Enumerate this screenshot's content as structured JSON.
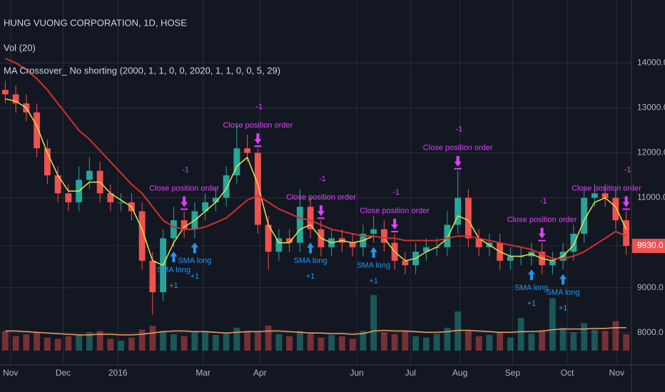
{
  "chart_data": {
    "type": "candlestick",
    "title": "HUNG VUONG CORPORATION, 1D, HOSE",
    "volume_title": "Vol (20)",
    "strategy_title": "MA Crossover_ No shorting (2000, 1, 1, 0, 0, 2020, 1, 1, 0, 0, 5, 29)",
    "up_color": "#26a69a",
    "down_color": "#ef5350",
    "grid": true,
    "xlim": [
      0,
      60
    ],
    "xticks": [
      {
        "value": 1,
        "label": "Nov"
      },
      {
        "value": 6,
        "label": "Dec"
      },
      {
        "value": 11.2,
        "label": "2016"
      },
      {
        "value": 19.3,
        "label": "Mar"
      },
      {
        "value": 24.7,
        "label": "Apr"
      },
      {
        "value": 33.9,
        "label": "Jun"
      },
      {
        "value": 39,
        "label": "Jul"
      },
      {
        "value": 43.7,
        "label": "Aug"
      },
      {
        "value": 48.7,
        "label": "Sep"
      },
      {
        "value": 53.9,
        "label": "Oct"
      },
      {
        "value": 58.6,
        "label": "Nov"
      }
    ],
    "ylim": [
      7600,
      15400
    ],
    "yticks": [
      {
        "value": 14000,
        "label": "14000.0"
      },
      {
        "value": 13000,
        "label": "13000.0"
      },
      {
        "value": 12000,
        "label": "12000.0"
      },
      {
        "value": 11000,
        "label": "11000.0"
      },
      {
        "value": 9000,
        "label": "9000.0"
      },
      {
        "value": 8000,
        "label": "8000.0"
      }
    ],
    "last_price": {
      "value": 9930,
      "label": "9930.0"
    },
    "open": [
      13400,
      13300,
      13100,
      12900,
      12100,
      11500,
      11100,
      10900,
      11400,
      11600,
      11100,
      10900,
      10900,
      10700,
      9600,
      8900,
      10100,
      10500,
      10300,
      10700,
      10900,
      11000,
      11500,
      12100,
      12000,
      10400,
      9800,
      10100,
      10000,
      10800,
      10300,
      9900,
      10100,
      10000,
      9900,
      10200,
      10300,
      10000,
      9600,
      9500,
      9800,
      9900,
      9900,
      10400,
      11000,
      10100,
      9900,
      10000,
      9600,
      9700,
      9700,
      9800,
      9500,
      9600,
      9800,
      10200,
      11000,
      11100,
      11000,
      10500
    ],
    "high": [
      13600,
      13500,
      13300,
      13100,
      12300,
      11700,
      11300,
      11700,
      11900,
      11800,
      11300,
      11100,
      11100,
      10900,
      9800,
      10300,
      10800,
      10700,
      10900,
      11100,
      11200,
      11700,
      12600,
      12400,
      12100,
      10600,
      10300,
      10300,
      11200,
      11000,
      10500,
      10300,
      10300,
      10200,
      10400,
      10600,
      10500,
      10200,
      9800,
      10000,
      10100,
      10100,
      10700,
      11600,
      11200,
      10300,
      10200,
      10200,
      9900,
      9900,
      10000,
      10000,
      9800,
      10000,
      10400,
      11200,
      11300,
      11300,
      11200,
      10700
    ],
    "low": [
      13100,
      12900,
      12700,
      11900,
      11300,
      10900,
      10700,
      10700,
      11200,
      10900,
      10700,
      10700,
      10500,
      9400,
      8400,
      8700,
      9900,
      10100,
      10100,
      10500,
      10700,
      10800,
      11300,
      11800,
      10200,
      9400,
      9600,
      9800,
      9800,
      10100,
      9700,
      9700,
      9800,
      9700,
      9700,
      10000,
      9800,
      9400,
      9300,
      9300,
      9600,
      9700,
      9700,
      10200,
      9900,
      9700,
      9700,
      9400,
      9400,
      9500,
      9500,
      9300,
      9300,
      9400,
      9600,
      10000,
      10800,
      10800,
      10300,
      9730
    ],
    "close": [
      13300,
      13100,
      12900,
      12100,
      11500,
      11100,
      10900,
      11400,
      11600,
      11100,
      10900,
      10900,
      10700,
      9600,
      8900,
      10100,
      10500,
      10300,
      10700,
      10900,
      11000,
      11500,
      12100,
      12000,
      10400,
      9800,
      10100,
      10000,
      10800,
      10300,
      9900,
      10100,
      10000,
      9900,
      10200,
      10300,
      10000,
      9600,
      9500,
      9800,
      9900,
      9900,
      10400,
      11000,
      10100,
      9900,
      10000,
      9600,
      9700,
      9700,
      9800,
      9500,
      9600,
      9800,
      10200,
      11000,
      11100,
      11000,
      10500,
      9930
    ],
    "series": [
      {
        "color": "#e8e04c",
        "values": [
          13200,
          13150,
          13000,
          12600,
          12000,
          11500,
          11150,
          11150,
          11350,
          11350,
          11100,
          10950,
          10800,
          10300,
          9600,
          9500,
          10000,
          10350,
          10500,
          10700,
          10900,
          11200,
          11700,
          11900,
          11300,
          10400,
          10000,
          10000,
          10300,
          10400,
          10100,
          10000,
          10050,
          10000,
          10050,
          10150,
          10100,
          9800,
          9600,
          9650,
          9800,
          9900,
          10100,
          10600,
          10500,
          10100,
          9950,
          9800,
          9700,
          9700,
          9750,
          9650,
          9600,
          9700,
          9950,
          10500,
          10900,
          11000,
          10800,
          10300
        ]
      },
      {
        "color": "#d32f2f",
        "values": [
          14100,
          14000,
          13850,
          13650,
          13400,
          13100,
          12800,
          12500,
          12300,
          12050,
          11800,
          11550,
          11300,
          11100,
          10800,
          10500,
          10350,
          10300,
          10300,
          10350,
          10450,
          10550,
          10750,
          10950,
          11050,
          10900,
          10750,
          10650,
          10550,
          10500,
          10400,
          10300,
          10250,
          10200,
          10150,
          10150,
          10100,
          10100,
          10050,
          10050,
          10050,
          10050,
          10100,
          10150,
          10150,
          10100,
          10050,
          10000,
          9950,
          9900,
          9850,
          9750,
          9650,
          9650,
          9700,
          9800,
          9950,
          10100,
          10250,
          10150
        ]
      }
    ],
    "volume": [
      30,
      22,
      25,
      28,
      20,
      18,
      22,
      25,
      28,
      30,
      18,
      15,
      20,
      32,
      38,
      30,
      25,
      22,
      28,
      30,
      24,
      26,
      35,
      30,
      28,
      38,
      25,
      22,
      30,
      26,
      20,
      24,
      22,
      18,
      30,
      85,
      28,
      25,
      30,
      22,
      20,
      26,
      35,
      60,
      30,
      22,
      24,
      28,
      20,
      50,
      26,
      30,
      80,
      35,
      28,
      42,
      32,
      30,
      45,
      25
    ],
    "volume_ma": {
      "color": "#f0a060",
      "values": [
        30,
        30,
        29,
        28,
        27,
        26,
        25,
        24,
        24,
        25,
        25,
        24,
        24,
        25,
        27,
        29,
        30,
        30,
        29,
        29,
        28,
        27,
        28,
        29,
        29,
        30,
        30,
        29,
        28,
        27,
        27,
        26,
        26,
        25,
        26,
        30,
        31,
        30,
        30,
        29,
        28,
        28,
        29,
        31,
        31,
        30,
        29,
        28,
        28,
        29,
        29,
        30,
        32,
        33,
        33,
        33,
        34,
        34,
        35,
        35
      ]
    },
    "volume_ylim": [
      0,
      100
    ],
    "signals": [
      {
        "side": "long",
        "label": "SMA long",
        "qty": "+1",
        "index": 16
      },
      {
        "side": "close",
        "label": "Close position order",
        "qty": "-1",
        "index": 17
      },
      {
        "side": "long",
        "label": "SMA long",
        "qty": "+1",
        "index": 18
      },
      {
        "side": "close",
        "label": "Close position order",
        "qty": "-1",
        "index": 24
      },
      {
        "side": "long",
        "label": "SMA long",
        "qty": "+1",
        "index": 29
      },
      {
        "side": "close",
        "label": "Close position order",
        "qty": "-1",
        "index": 30
      },
      {
        "side": "long",
        "label": "SMA long",
        "qty": "+1",
        "index": 35
      },
      {
        "side": "close",
        "label": "Close position order",
        "qty": "-1",
        "index": 37
      },
      {
        "side": "close",
        "label": "Close position order",
        "qty": "-1",
        "index": 43
      },
      {
        "side": "long",
        "label": "SMA long",
        "qty": "+1",
        "index": 50
      },
      {
        "side": "close",
        "label": "Close position order",
        "qty": "-1",
        "index": 51
      },
      {
        "side": "long",
        "label": "SMA long",
        "qty": "+1",
        "index": 53
      },
      {
        "side": "close",
        "label": "Close position order",
        "qty": "-1",
        "index": 59
      }
    ]
  }
}
